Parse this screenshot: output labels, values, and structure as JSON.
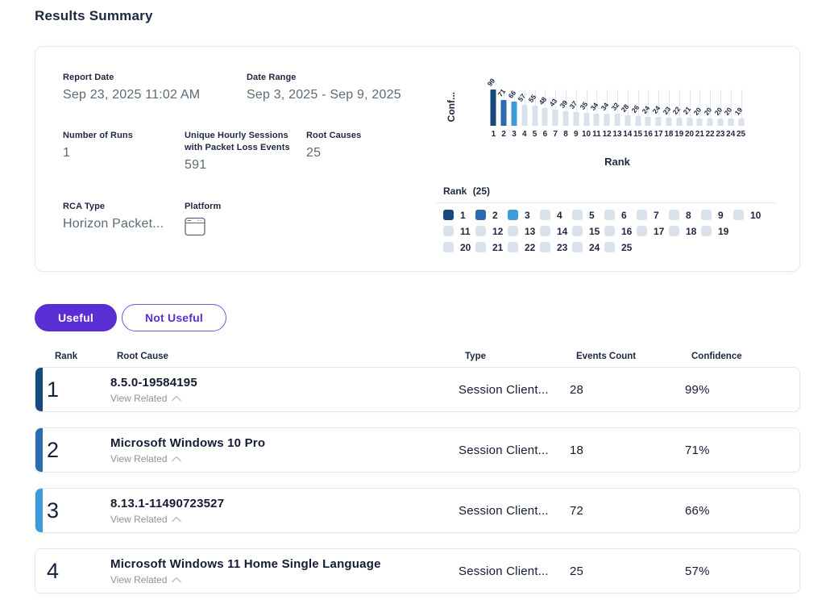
{
  "page_title": "Results Summary",
  "summary": {
    "fields": [
      {
        "label": "Report Date",
        "value": "Sep 23, 2025 11:02 AM"
      },
      {
        "label": "Date Range",
        "value": "Sep 3, 2025 - Sep 9, 2025"
      },
      {
        "label": "Number of Runs",
        "value": "1"
      },
      {
        "label": "Unique Hourly Sessions with Packet Loss Events",
        "value": "591"
      },
      {
        "label": "Root Causes",
        "value": "25"
      },
      {
        "label": "RCA Type",
        "value": "Horizon Packet..."
      },
      {
        "label": "Platform",
        "icon": "app-window-icon"
      }
    ]
  },
  "chart_data": {
    "type": "bar",
    "categories": [
      1,
      2,
      3,
      4,
      5,
      6,
      7,
      8,
      9,
      10,
      11,
      12,
      13,
      14,
      15,
      16,
      17,
      18,
      19,
      20,
      21,
      22,
      23,
      24,
      25
    ],
    "values": [
      99,
      71,
      66,
      57,
      55,
      48,
      43,
      39,
      37,
      35,
      34,
      34,
      32,
      28,
      26,
      24,
      24,
      23,
      22,
      21,
      20,
      20,
      20,
      20,
      19
    ],
    "title": "",
    "xlabel": "Rank",
    "ylabel": "Conf...",
    "ylim": [
      0,
      99
    ],
    "grid": false,
    "legend_position": "bottom",
    "bar_colors": {
      "1": "#164a7c",
      "2": "#2a6cae",
      "3": "#3c9bd8",
      "default": "#d9e2eb"
    },
    "legend": {
      "title": "Rank",
      "count": "(25)",
      "rows": [
        [
          1,
          2,
          3,
          4,
          5,
          6,
          7,
          8,
          9,
          10
        ],
        [
          11,
          12,
          13,
          14,
          15,
          16,
          17,
          18,
          19
        ],
        [
          20,
          21,
          22,
          23,
          24,
          25
        ]
      ]
    }
  },
  "feedback": {
    "useful_label": "Useful",
    "not_useful_label": "Not Useful",
    "accent_color": "#5a2ed3"
  },
  "table": {
    "columns": [
      "Rank",
      "Root Cause",
      "Type",
      "Events Count",
      "Confidence"
    ],
    "view_related_label": "View Related",
    "rows": [
      {
        "rank": "1",
        "root_cause": "8.5.0-19584195",
        "type": "Session Client...",
        "events_count": "28",
        "confidence": "99%",
        "stripe_color": "#164a7c"
      },
      {
        "rank": "2",
        "root_cause": "Microsoft Windows 10 Pro",
        "type": "Session Client...",
        "events_count": "18",
        "confidence": "71%",
        "stripe_color": "#2a6cae"
      },
      {
        "rank": "3",
        "root_cause": "8.13.1-11490723527",
        "type": "Session Client...",
        "events_count": "72",
        "confidence": "66%",
        "stripe_color": "#3c9bd8"
      },
      {
        "rank": "4",
        "root_cause": "Microsoft Windows 11 Home Single Language",
        "type": "Session Client...",
        "events_count": "25",
        "confidence": "57%",
        "stripe_color": null
      }
    ]
  }
}
